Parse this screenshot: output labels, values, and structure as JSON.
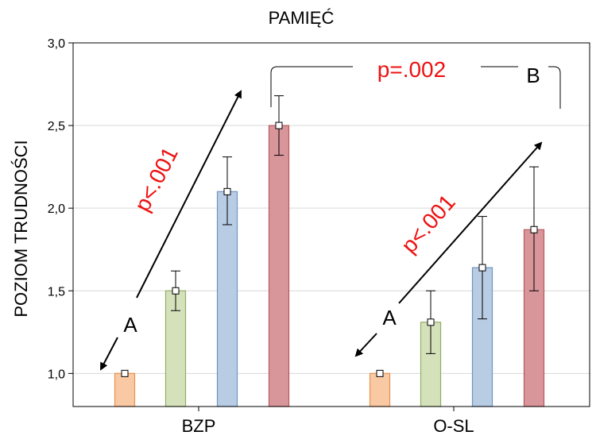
{
  "chart_data": {
    "type": "bar",
    "title": "PAMIĘĆ",
    "ylabel": "POZIOM TRUDNOŚCI",
    "xlabel": "",
    "ylim": [
      0.8,
      3.0
    ],
    "yticks": [
      "1,0",
      "1,5",
      "2,0",
      "2,5",
      "3,0"
    ],
    "ytick_values": [
      1.0,
      1.5,
      2.0,
      2.5,
      3.0
    ],
    "grid": true,
    "categories": [
      "BZP",
      "O-SL"
    ],
    "bar_colors": [
      "#f9c9a3",
      "#d5e1bb",
      "#b8cce4",
      "#d8959a"
    ],
    "bar_edge_colors": [
      "#e8924f",
      "#8fae63",
      "#6f94c3",
      "#b95a60"
    ],
    "series": [
      {
        "values": [
          1.0,
          1.0
        ],
        "err_low": [
          1.0,
          1.0
        ],
        "err_high": [
          1.0,
          1.0
        ]
      },
      {
        "values": [
          1.5,
          1.31
        ],
        "err_low": [
          1.38,
          1.12
        ],
        "err_high": [
          1.62,
          1.5
        ]
      },
      {
        "values": [
          2.1,
          1.64
        ],
        "err_low": [
          1.9,
          1.33
        ],
        "err_high": [
          2.31,
          1.95
        ]
      },
      {
        "values": [
          2.5,
          1.87
        ],
        "err_low": [
          2.32,
          1.5
        ],
        "err_high": [
          2.68,
          2.25
        ]
      }
    ],
    "annotations": {
      "trend_left": "p<.001",
      "trend_right": "p<.001",
      "marker_left": "A",
      "marker_right": "A",
      "bracket_text": "p=.002",
      "bracket_marker": "B"
    }
  }
}
